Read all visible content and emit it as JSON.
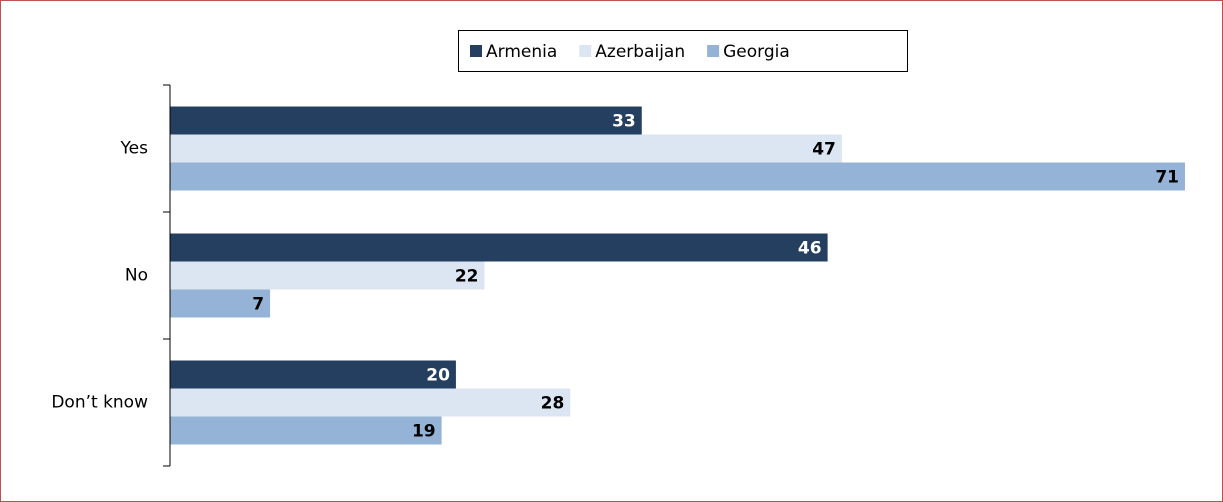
{
  "chart_data": {
    "type": "hbar",
    "categories": [
      "Yes",
      "No",
      "Don’t know"
    ],
    "series": [
      {
        "name": "Armenia",
        "color": "#243f60",
        "values": [
          33,
          46,
          20
        ]
      },
      {
        "name": "Azerbaijan",
        "color": "#dce6f2",
        "values": [
          47,
          22,
          28
        ]
      },
      {
        "name": "Georgia",
        "color": "#95b3d7",
        "values": [
          71,
          7,
          19
        ]
      }
    ],
    "legend": "top"
  }
}
